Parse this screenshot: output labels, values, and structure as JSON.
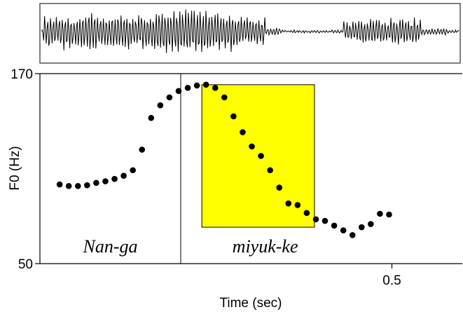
{
  "chart_data": {
    "type": "scatter",
    "ylabel": "F0 (Hz)",
    "xlabel": "Time (sec)",
    "ylim": [
      50,
      170
    ],
    "xlim": [
      0.0,
      0.6
    ],
    "yticks": [
      "170",
      "50"
    ],
    "xticks": [
      {
        "value": 0.5,
        "label": "0.5"
      }
    ],
    "grid": false,
    "legend": "none",
    "segment_boundary_time": 0.2,
    "highlight": {
      "x_range": [
        0.23,
        0.39
      ],
      "y_range": [
        73,
        163
      ],
      "color": "#ffff00"
    },
    "segments": [
      {
        "label": "Nan-ga",
        "time": 0.1
      },
      {
        "label": "miyuk-ke",
        "time": 0.32
      }
    ],
    "points": [
      {
        "x": 0.028,
        "y": 100
      },
      {
        "x": 0.041,
        "y": 99
      },
      {
        "x": 0.054,
        "y": 99
      },
      {
        "x": 0.067,
        "y": 99.5
      },
      {
        "x": 0.08,
        "y": 101
      },
      {
        "x": 0.093,
        "y": 102
      },
      {
        "x": 0.106,
        "y": 103.5
      },
      {
        "x": 0.119,
        "y": 105.5
      },
      {
        "x": 0.132,
        "y": 109
      },
      {
        "x": 0.145,
        "y": 122
      },
      {
        "x": 0.158,
        "y": 142
      },
      {
        "x": 0.171,
        "y": 150
      },
      {
        "x": 0.184,
        "y": 155
      },
      {
        "x": 0.197,
        "y": 159
      },
      {
        "x": 0.21,
        "y": 161
      },
      {
        "x": 0.223,
        "y": 162.5
      },
      {
        "x": 0.236,
        "y": 163
      },
      {
        "x": 0.249,
        "y": 161
      },
      {
        "x": 0.262,
        "y": 155
      },
      {
        "x": 0.275,
        "y": 143
      },
      {
        "x": 0.288,
        "y": 133
      },
      {
        "x": 0.301,
        "y": 124
      },
      {
        "x": 0.314,
        "y": 118
      },
      {
        "x": 0.327,
        "y": 109
      },
      {
        "x": 0.34,
        "y": 98
      },
      {
        "x": 0.353,
        "y": 88
      },
      {
        "x": 0.366,
        "y": 87
      },
      {
        "x": 0.379,
        "y": 82
      },
      {
        "x": 0.392,
        "y": 78
      },
      {
        "x": 0.405,
        "y": 77
      },
      {
        "x": 0.418,
        "y": 74
      },
      {
        "x": 0.431,
        "y": 71
      },
      {
        "x": 0.444,
        "y": 68
      },
      {
        "x": 0.457,
        "y": 73
      },
      {
        "x": 0.47,
        "y": 75
      },
      {
        "x": 0.483,
        "y": 81.5
      },
      {
        "x": 0.496,
        "y": 81
      }
    ]
  }
}
